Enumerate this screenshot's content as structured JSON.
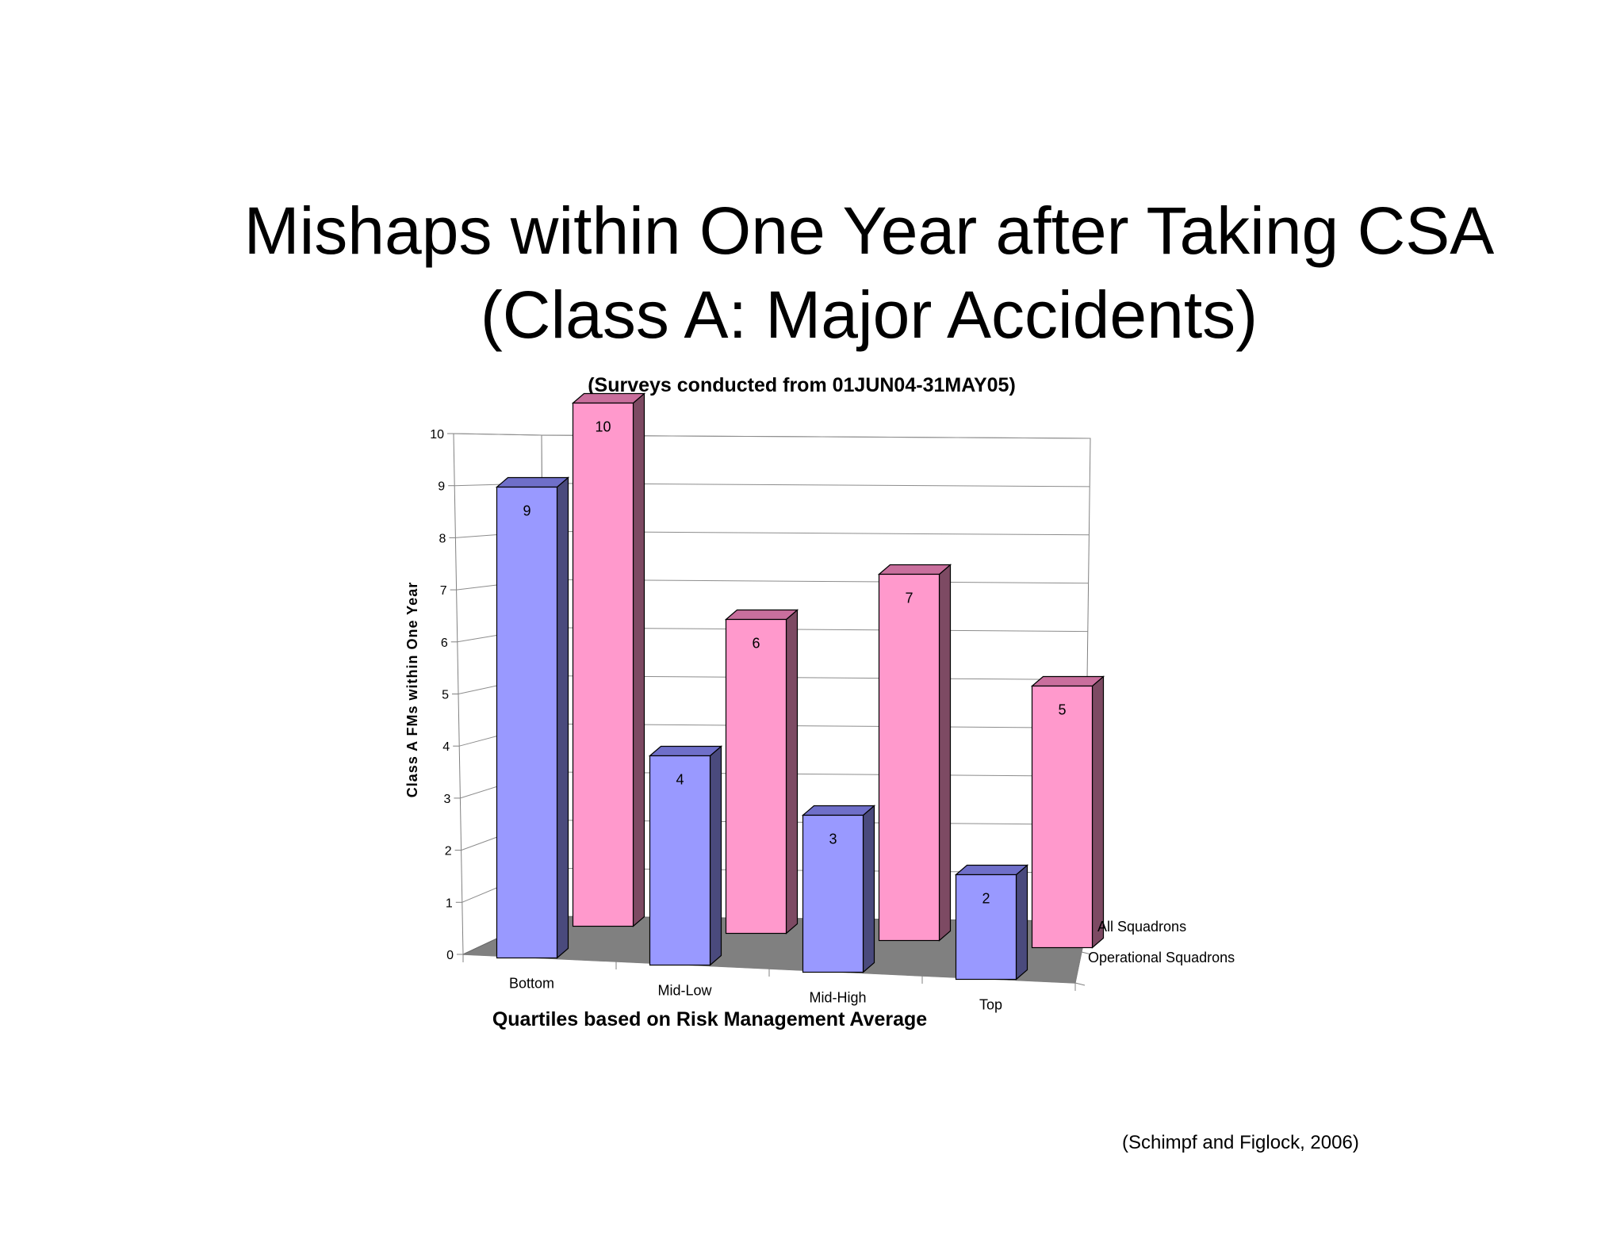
{
  "slide": {
    "title_line1": "Mishaps within One Year after Taking CSA",
    "title_line2": "(Class A: Major Accidents)",
    "source": "(Schimpf and Figlock, 2006)"
  },
  "chart_data": {
    "type": "bar",
    "subtitle": "(Surveys conducted from 01JUN04-31MAY05)",
    "categories": [
      "Bottom",
      "Mid-Low",
      "Mid-High",
      "Top"
    ],
    "series": [
      {
        "name": "Operational Squadrons",
        "values": [
          9,
          4,
          3,
          2
        ],
        "color": "#9999ff",
        "side_color": "#4a4a7d",
        "top_color": "#6f6fc9"
      },
      {
        "name": "All Squadrons",
        "values": [
          10,
          6,
          7,
          5
        ],
        "color": "#ff99cc",
        "side_color": "#7d4a63",
        "top_color": "#c96f9d"
      }
    ],
    "xlabel": "Quartiles based on Risk Management Average",
    "ylabel": "Class A FMs within One Year",
    "y_ticks": [
      "0",
      "1",
      "2",
      "3",
      "4",
      "5",
      "6",
      "7",
      "8",
      "9",
      "10"
    ],
    "ylim": [
      0,
      10
    ],
    "grid": true,
    "floor_color": "#808080",
    "depth_labels": [
      "All Squadrons",
      "Operational Squadrons"
    ],
    "data_labels": true
  }
}
